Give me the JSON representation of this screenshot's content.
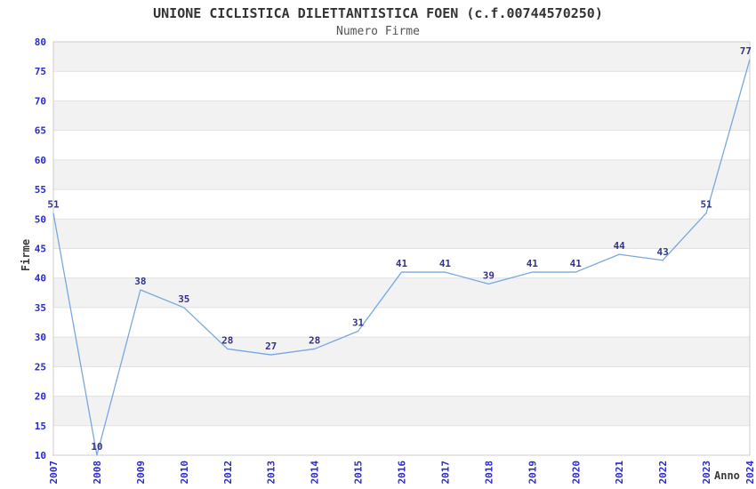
{
  "header": {
    "title": "UNIONE CICLISTICA DILETTANTISTICA FOEN (c.f.00744570250)",
    "subtitle": "Numero Firme"
  },
  "chart_data": {
    "type": "line",
    "title": "UNIONE CICLISTICA DILETTANTISTICA FOEN (c.f.00744570250)",
    "subtitle": "Numero Firme",
    "xlabel": "Anno",
    "ylabel": "Firme",
    "categories": [
      "2007",
      "2008",
      "2009",
      "2010",
      "2012",
      "2013",
      "2014",
      "2015",
      "2016",
      "2017",
      "2018",
      "2019",
      "2020",
      "2021",
      "2022",
      "2023",
      "2024"
    ],
    "values": [
      51,
      10,
      38,
      35,
      28,
      27,
      28,
      31,
      41,
      41,
      39,
      41,
      41,
      44,
      43,
      51,
      77
    ],
    "ylim": [
      10,
      80
    ],
    "ytick_step": 5,
    "grid": "horizontal-bands",
    "legend": "none",
    "data_labels": "on",
    "colors": {
      "line": "#78a8de",
      "data_label": "#333388",
      "axis_tick_label": "#2929cc",
      "title": "#333333",
      "subtitle": "#555555",
      "axis_title": "#3a3a3a",
      "band_fill": "#f2f2f2",
      "gridline": "#e1e1e1",
      "plot_border": "#cccccc",
      "background": "#ffffff"
    }
  }
}
